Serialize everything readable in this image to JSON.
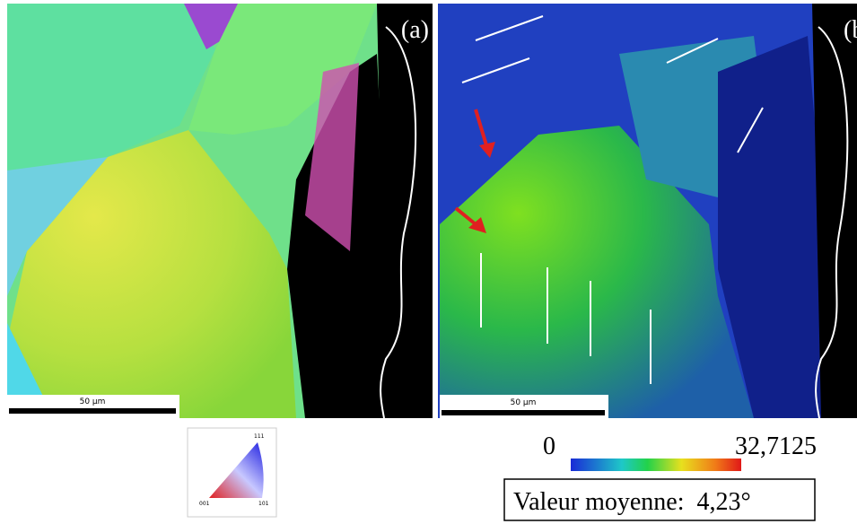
{
  "panel_a": {
    "label": "(a)",
    "scale_bar": "50 µm"
  },
  "panel_b": {
    "label": "(b",
    "scale_bar": "50 µm"
  },
  "ipf_key": {
    "top": "111",
    "left": "001",
    "right": "101"
  },
  "colorbar": {
    "min": "0",
    "max": "32,7125"
  },
  "mean_value": "Valeur moyenne:  4,23°"
}
